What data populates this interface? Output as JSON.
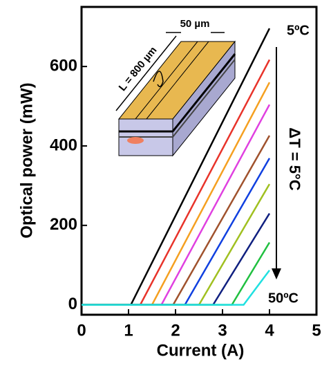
{
  "chart_data": {
    "type": "line",
    "xlabel": "Current (A)",
    "ylabel": "Optical power (mW)",
    "xlim": [
      0,
      5
    ],
    "ylim": [
      -25,
      750
    ],
    "xticks": [
      0,
      1,
      2,
      3,
      4,
      5
    ],
    "yticks": [
      0,
      200,
      400,
      600
    ],
    "series": [
      {
        "color": "#000000",
        "x": [
          0,
          1.05,
          4
        ],
        "values": [
          0,
          0,
          696
        ]
      },
      {
        "color": "#e8332a",
        "x": [
          0,
          1.25,
          4
        ],
        "values": [
          0,
          0,
          617
        ]
      },
      {
        "color": "#f5a020",
        "x": [
          0,
          1.5,
          4
        ],
        "values": [
          0,
          0,
          560
        ]
      },
      {
        "color": "#e040e0",
        "x": [
          0,
          1.7,
          4
        ],
        "values": [
          0,
          0,
          504
        ]
      },
      {
        "color": "#a0522d",
        "x": [
          0,
          1.95,
          4
        ],
        "values": [
          0,
          0,
          426
        ]
      },
      {
        "color": "#1040e0",
        "x": [
          0,
          2.2,
          4
        ],
        "values": [
          0,
          0,
          369
        ]
      },
      {
        "color": "#a0c020",
        "x": [
          0,
          2.5,
          4
        ],
        "values": [
          0,
          0,
          304
        ]
      },
      {
        "color": "#102080",
        "x": [
          0,
          2.8,
          4
        ],
        "values": [
          0,
          0,
          230
        ]
      },
      {
        "color": "#20c040",
        "x": [
          0,
          3.2,
          4
        ],
        "values": [
          0,
          0,
          157
        ]
      },
      {
        "color": "#20e0e0",
        "x": [
          0,
          3.45,
          4
        ],
        "values": [
          0,
          0,
          87
        ]
      }
    ],
    "annotations": [
      "5ºC",
      "50ºC",
      "ΔT = 5°C",
      "50 µm",
      "L = 800 µm"
    ]
  }
}
